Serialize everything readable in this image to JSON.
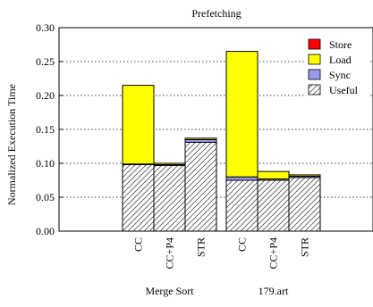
{
  "chart_data": {
    "type": "bar",
    "stacked": true,
    "title": "Prefetching",
    "ylabel": "Normalized Execution Time",
    "xlabel": "",
    "ylim": [
      0,
      0.3
    ],
    "yticks": [
      0.0,
      0.05,
      0.1,
      0.15,
      0.2,
      0.25,
      0.3
    ],
    "ytick_labels": [
      "0.00",
      "0.05",
      "0.10",
      "0.15",
      "0.20",
      "0.25",
      "0.30"
    ],
    "grid": "horizontal dotted",
    "legend_position": "top-right",
    "groups": [
      {
        "name": "Merge Sort",
        "categories": [
          "CC",
          "CC+P4",
          "STR"
        ]
      },
      {
        "name": "179.art",
        "categories": [
          "CC",
          "CC+P4",
          "STR"
        ]
      }
    ],
    "series": [
      {
        "name": "Useful",
        "color": "#ffffff",
        "pattern": "hatch",
        "values": [
          0.098,
          0.097,
          0.131,
          0.075,
          0.075,
          0.079
        ]
      },
      {
        "name": "Sync",
        "color": "#9999ee",
        "values": [
          0.001,
          0.001,
          0.004,
          0.005,
          0.002,
          0.002
        ]
      },
      {
        "name": "Load",
        "color": "#ffff00",
        "values": [
          0.116,
          0.002,
          0.002,
          0.185,
          0.011,
          0.002
        ]
      },
      {
        "name": "Store",
        "color": "#ff0000",
        "values": [
          0.0,
          0.0,
          0.0,
          0.0,
          0.0,
          0.0
        ]
      }
    ],
    "legend_order": [
      "Store",
      "Load",
      "Sync",
      "Useful"
    ]
  }
}
